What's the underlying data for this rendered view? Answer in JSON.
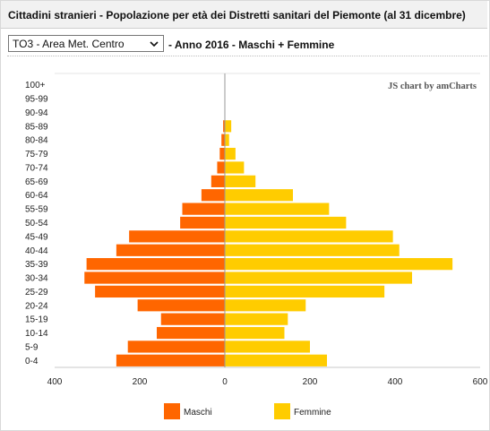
{
  "header": {
    "title": "Cittadini stranieri - Popolazione per età dei Distretti sanitari del Piemonte (al 31 dicembre)"
  },
  "controls": {
    "district_select_value": "TO3 - Area Met. Centro",
    "subtitle": "- Anno 2016 - Maschi + Femmine",
    "chevron_icon": "chevron-down-icon"
  },
  "chart_credit": "JS chart by amCharts",
  "chart_data": {
    "type": "bar",
    "orientation": "horizontal-population-pyramid",
    "categories": [
      "0-4",
      "5-9",
      "10-14",
      "15-19",
      "20-24",
      "25-29",
      "30-34",
      "35-39",
      "40-44",
      "45-49",
      "50-54",
      "55-59",
      "60-64",
      "65-69",
      "70-74",
      "75-79",
      "80-84",
      "85-89",
      "90-94",
      "95-99",
      "100+"
    ],
    "series": [
      {
        "name": "Maschi",
        "color": "#ff6600",
        "values": [
          255,
          228,
          160,
          150,
          205,
          305,
          330,
          325,
          255,
          225,
          105,
          100,
          55,
          32,
          18,
          12,
          8,
          4,
          0,
          0,
          0
        ]
      },
      {
        "name": "Femmine",
        "color": "#ffcc00",
        "values": [
          240,
          200,
          140,
          148,
          190,
          375,
          440,
          535,
          410,
          395,
          285,
          245,
          160,
          72,
          45,
          25,
          10,
          15,
          0,
          0,
          0
        ]
      }
    ],
    "xlim": [
      -400,
      600
    ],
    "x_ticks": [
      "400",
      "200",
      "0",
      "200",
      "400",
      "600"
    ],
    "grid": false,
    "legend": "bottom"
  }
}
